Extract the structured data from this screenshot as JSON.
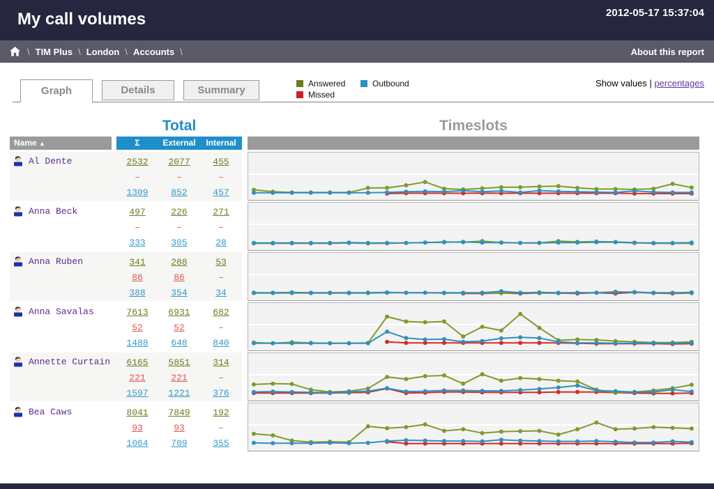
{
  "header": {
    "title": "My call volumes",
    "timestamp": "2012-05-17 15:37:04"
  },
  "breadcrumb": {
    "items": [
      "TIM Plus",
      "London",
      "Accounts"
    ],
    "separator": "\\",
    "about_link": "About this report"
  },
  "tabs": [
    {
      "label": "Graph",
      "active": true
    },
    {
      "label": "Details",
      "active": false
    },
    {
      "label": "Summary",
      "active": false
    }
  ],
  "legend": [
    {
      "label": "Answered",
      "color": "#6b7c1e"
    },
    {
      "label": "Outbound",
      "color": "#2e8fc0"
    },
    {
      "label": "Missed",
      "color": "#cc2129"
    }
  ],
  "show_values": {
    "prefix": "Show values | ",
    "link": "percentages"
  },
  "colors": {
    "titlebar_bg": "#26263e",
    "breadcrumb_bg": "#5a5a68",
    "accent_blue": "#1f8fc9",
    "header_gray": "#9a9a9a",
    "answered_text": "#6b7c1f",
    "missed_text": "#e0564e",
    "outbound_text": "#3399cc",
    "name_text": "#5b2d90"
  },
  "table": {
    "total_heading": "Total",
    "timeslots_heading": "Timeslots",
    "name_header": "Name",
    "sort_arrow": "▲",
    "value_headers": [
      "Σ",
      "External",
      "Internal"
    ],
    "rows": [
      {
        "name": "Al Dente",
        "answered": [
          "2532",
          "2077",
          "455"
        ],
        "missed": [
          "–",
          "–",
          "–"
        ],
        "outbound": [
          "1309",
          "852",
          "457"
        ]
      },
      {
        "name": "Anna Beck",
        "answered": [
          "497",
          "226",
          "271"
        ],
        "missed": [
          "–",
          "–",
          "–"
        ],
        "outbound": [
          "333",
          "305",
          "28"
        ]
      },
      {
        "name": "Anna Ruben",
        "answered": [
          "341",
          "288",
          "53"
        ],
        "missed": [
          "86",
          "86",
          "–"
        ],
        "outbound": [
          "388",
          "354",
          "34"
        ]
      },
      {
        "name": "Anna Savalas",
        "answered": [
          "7613",
          "6931",
          "682"
        ],
        "missed": [
          "52",
          "52",
          "–"
        ],
        "outbound": [
          "1488",
          "648",
          "840"
        ]
      },
      {
        "name": "Annette Curtain",
        "answered": [
          "6165",
          "5851",
          "314"
        ],
        "missed": [
          "221",
          "221",
          "–"
        ],
        "outbound": [
          "1597",
          "1221",
          "376"
        ]
      },
      {
        "name": "Bea Caws",
        "answered": [
          "8041",
          "7849",
          "192"
        ],
        "missed": [
          "93",
          "93",
          "–"
        ],
        "outbound": [
          "1064",
          "709",
          "355"
        ]
      }
    ]
  },
  "chart_data": [
    {
      "type": "line",
      "person": "Al Dente",
      "x_unit": "timeslot (hour 0-23)",
      "x": [
        0,
        1,
        2,
        3,
        4,
        5,
        6,
        7,
        8,
        9,
        10,
        11,
        12,
        13,
        14,
        15,
        16,
        17,
        18,
        19,
        20,
        21,
        22,
        23
      ],
      "y_unit": "relative height % of chart (values estimated, no axis labels shown)",
      "grid": true,
      "legend_position": "above-table",
      "series": [
        {
          "name": "Answered",
          "color": "#7d9b2d",
          "values": [
            12,
            7,
            5,
            5,
            5,
            5,
            17,
            17,
            24,
            33,
            15,
            13,
            16,
            19,
            19,
            21,
            22,
            17,
            14,
            14,
            13,
            15,
            28,
            18
          ]
        },
        {
          "name": "Missed",
          "color": "#d62b24",
          "values": [
            null,
            null,
            null,
            null,
            null,
            null,
            null,
            2,
            3,
            3,
            3,
            3,
            3,
            3,
            3,
            3,
            3,
            3,
            3,
            3,
            2,
            2,
            2,
            2
          ]
        },
        {
          "name": "Outbound",
          "color": "#2e8fc0",
          "values": [
            4,
            4,
            4,
            4,
            4,
            4,
            4,
            5,
            7,
            8,
            7,
            10,
            7,
            9,
            5,
            10,
            8,
            7,
            6,
            5,
            9,
            6,
            5,
            5
          ]
        }
      ]
    },
    {
      "type": "line",
      "person": "Anna Beck",
      "x_unit": "timeslot (hour 0-23)",
      "x": [
        0,
        1,
        2,
        3,
        4,
        5,
        6,
        7,
        8,
        9,
        10,
        11,
        12,
        13,
        14,
        15,
        16,
        17,
        18,
        19,
        20,
        21,
        22,
        23
      ],
      "y_unit": "relative height % of chart (values estimated, no axis labels shown)",
      "grid": true,
      "legend_position": "above-table",
      "series": [
        {
          "name": "Answered",
          "color": "#7d9b2d",
          "values": [
            3,
            3,
            3,
            3,
            3,
            4,
            3,
            3,
            4,
            5,
            7,
            6,
            9,
            5,
            4,
            4,
            9,
            7,
            8,
            7,
            5,
            3,
            3,
            3
          ]
        },
        {
          "name": "Missed",
          "color": "#d62b24",
          "values": [
            null,
            null,
            null,
            null,
            null,
            null,
            null,
            null,
            null,
            null,
            null,
            null,
            null,
            null,
            null,
            null,
            null,
            null,
            null,
            null,
            null,
            null,
            null,
            null
          ]
        },
        {
          "name": "Outbound",
          "color": "#2e8fc0",
          "values": [
            4,
            4,
            4,
            4,
            4,
            5,
            4,
            4,
            4,
            5,
            6,
            7,
            5,
            5,
            4,
            4,
            5,
            5,
            6,
            6,
            4,
            4,
            4,
            5
          ]
        }
      ]
    },
    {
      "type": "line",
      "person": "Anna Ruben",
      "x_unit": "timeslot (hour 0-23)",
      "x": [
        0,
        1,
        2,
        3,
        4,
        5,
        6,
        7,
        8,
        9,
        10,
        11,
        12,
        13,
        14,
        15,
        16,
        17,
        18,
        19,
        20,
        21,
        22,
        23
      ],
      "y_unit": "relative height % of chart (values estimated, no axis labels shown)",
      "grid": true,
      "legend_position": "above-table",
      "series": [
        {
          "name": "Answered",
          "color": "#7d9b2d",
          "values": [
            4,
            4,
            4,
            4,
            4,
            4,
            4,
            5,
            5,
            5,
            4,
            4,
            4,
            4,
            5,
            4,
            4,
            5,
            5,
            8,
            6,
            5,
            4,
            4
          ]
        },
        {
          "name": "Missed",
          "color": "#d62b24",
          "values": [
            null,
            null,
            null,
            null,
            null,
            null,
            null,
            null,
            null,
            null,
            null,
            3,
            3,
            4,
            3,
            4,
            4,
            3,
            5,
            3,
            6,
            4,
            3,
            4
          ]
        },
        {
          "name": "Outbound",
          "color": "#2e8fc0",
          "values": [
            5,
            5,
            6,
            5,
            5,
            5,
            5,
            6,
            5,
            5,
            5,
            5,
            5,
            9,
            5,
            6,
            5,
            5,
            5,
            6,
            7,
            5,
            5,
            6
          ]
        }
      ]
    },
    {
      "type": "line",
      "person": "Anna Savalas",
      "x_unit": "timeslot (hour 0-23)",
      "x": [
        0,
        1,
        2,
        3,
        4,
        5,
        6,
        7,
        8,
        9,
        10,
        11,
        12,
        13,
        14,
        15,
        16,
        17,
        18,
        19,
        20,
        21,
        22,
        23
      ],
      "y_unit": "relative height % of chart (values estimated, no axis labels shown)",
      "grid": true,
      "legend_position": "above-table",
      "series": [
        {
          "name": "Answered",
          "color": "#7d9b2d",
          "values": [
            6,
            4,
            7,
            5,
            4,
            4,
            5,
            75,
            62,
            60,
            62,
            22,
            48,
            38,
            82,
            45,
            12,
            14,
            13,
            10,
            8,
            6,
            6,
            8
          ]
        },
        {
          "name": "Missed",
          "color": "#d62b24",
          "values": [
            null,
            null,
            null,
            null,
            null,
            null,
            null,
            8,
            5,
            5,
            5,
            5,
            5,
            5,
            5,
            5,
            5,
            4,
            3,
            3,
            3,
            3,
            2,
            3
          ]
        },
        {
          "name": "Outbound",
          "color": "#2e8fc0",
          "values": [
            4,
            4,
            4,
            4,
            4,
            4,
            4,
            35,
            18,
            14,
            15,
            8,
            10,
            17,
            20,
            18,
            8,
            5,
            5,
            4,
            4,
            4,
            4,
            5
          ]
        }
      ]
    },
    {
      "type": "line",
      "person": "Annette Curtain",
      "x_unit": "timeslot (hour 0-23)",
      "x": [
        0,
        1,
        2,
        3,
        4,
        5,
        6,
        7,
        8,
        9,
        10,
        11,
        12,
        13,
        14,
        15,
        16,
        17,
        18,
        19,
        20,
        21,
        22,
        23
      ],
      "y_unit": "relative height % of chart (values estimated, no axis labels shown)",
      "grid": true,
      "legend_position": "above-table",
      "series": [
        {
          "name": "Answered",
          "color": "#7d9b2d",
          "values": [
            28,
            30,
            29,
            14,
            8,
            10,
            17,
            48,
            42,
            50,
            52,
            30,
            55,
            38,
            45,
            42,
            38,
            36,
            14,
            6,
            8,
            12,
            18,
            27
          ]
        },
        {
          "name": "Missed",
          "color": "#d62b24",
          "values": [
            5,
            5,
            5,
            5,
            5,
            6,
            7,
            17,
            5,
            6,
            8,
            8,
            7,
            7,
            7,
            7,
            8,
            8,
            8,
            6,
            5,
            4,
            4,
            5
          ]
        },
        {
          "name": "Outbound",
          "color": "#2e8fc0",
          "values": [
            8,
            9,
            8,
            7,
            6,
            8,
            10,
            18,
            9,
            10,
            12,
            12,
            11,
            11,
            13,
            16,
            20,
            25,
            12,
            10,
            8,
            8,
            14,
            9
          ]
        }
      ]
    },
    {
      "type": "line",
      "person": "Bea Caws",
      "x_unit": "timeslot (hour 0-23)",
      "x": [
        0,
        1,
        2,
        3,
        4,
        5,
        6,
        7,
        8,
        9,
        10,
        11,
        12,
        13,
        14,
        15,
        16,
        17,
        18,
        19,
        20,
        21,
        22,
        23
      ],
      "y_unit": "relative height % of chart (values estimated, no axis labels shown)",
      "grid": true,
      "legend_position": "above-table",
      "series": [
        {
          "name": "Answered",
          "color": "#7d9b2d",
          "values": [
            30,
            26,
            12,
            8,
            9,
            8,
            50,
            45,
            48,
            55,
            38,
            42,
            32,
            36,
            37,
            38,
            28,
            42,
            60,
            42,
            44,
            48,
            46,
            44
          ]
        },
        {
          "name": "Missed",
          "color": "#d62b24",
          "values": [
            null,
            null,
            null,
            null,
            null,
            null,
            null,
            9,
            4,
            4,
            4,
            4,
            4,
            4,
            4,
            4,
            4,
            4,
            4,
            4,
            4,
            4,
            4,
            5
          ]
        },
        {
          "name": "Outbound",
          "color": "#2e8fc0",
          "values": [
            6,
            5,
            5,
            5,
            6,
            5,
            6,
            11,
            13,
            12,
            11,
            11,
            10,
            14,
            12,
            11,
            10,
            10,
            11,
            9,
            7,
            7,
            10,
            8
          ]
        }
      ]
    }
  ]
}
